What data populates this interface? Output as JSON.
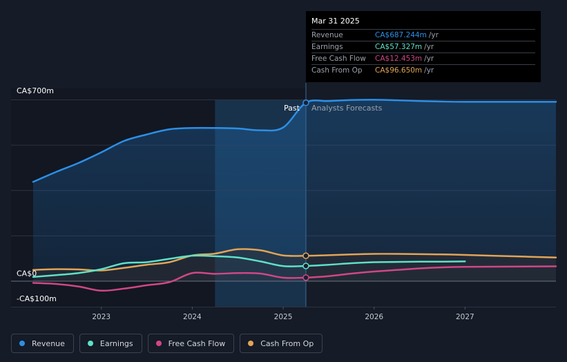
{
  "chart_data": {
    "type": "line",
    "title": "",
    "y_unit": "CA$",
    "ylim": [
      -100,
      700
    ],
    "xlim": [
      2022.25,
      2028.0
    ],
    "y_tick_labels": [
      {
        "value": 700,
        "label": "CA$700m"
      },
      {
        "value": 0,
        "label": "CA$0"
      },
      {
        "value": -100,
        "label": "-CA$100m"
      }
    ],
    "x_ticks": [
      {
        "value": 2023,
        "label": "2023"
      },
      {
        "value": 2024,
        "label": "2024"
      },
      {
        "value": 2025,
        "label": "2025"
      },
      {
        "value": 2026,
        "label": "2026"
      },
      {
        "value": 2027,
        "label": "2027"
      }
    ],
    "past_label": "Past",
    "forecast_label": "Analysts Forecasts",
    "divider_x": 2025.25,
    "highlight_start_x": 2024.25,
    "series": [
      {
        "name": "Revenue",
        "color": "#2d8fe6",
        "area": true,
        "points": [
          [
            2022.25,
            382
          ],
          [
            2022.5,
            420
          ],
          [
            2022.75,
            455
          ],
          [
            2023.0,
            496
          ],
          [
            2023.25,
            540
          ],
          [
            2023.5,
            565
          ],
          [
            2023.75,
            585
          ],
          [
            2024.0,
            590
          ],
          [
            2024.25,
            590
          ],
          [
            2024.5,
            588
          ],
          [
            2024.75,
            581
          ],
          [
            2025.0,
            592
          ],
          [
            2025.25,
            687.244
          ],
          [
            2025.5,
            694
          ],
          [
            2025.75,
            698
          ],
          [
            2026.0,
            699
          ],
          [
            2026.25,
            697
          ],
          [
            2026.5,
            694
          ],
          [
            2026.75,
            692
          ],
          [
            2027.0,
            691
          ],
          [
            2027.5,
            691
          ],
          [
            2028.0,
            691
          ]
        ]
      },
      {
        "name": "Earnings",
        "color": "#5ee1c8",
        "points": [
          [
            2022.25,
            15
          ],
          [
            2022.5,
            22
          ],
          [
            2022.75,
            30
          ],
          [
            2023.0,
            45
          ],
          [
            2023.25,
            68
          ],
          [
            2023.5,
            72
          ],
          [
            2023.75,
            85
          ],
          [
            2024.0,
            97
          ],
          [
            2024.25,
            95
          ],
          [
            2024.5,
            90
          ],
          [
            2024.75,
            75
          ],
          [
            2025.0,
            57
          ],
          [
            2025.25,
            57.327
          ],
          [
            2025.5,
            62
          ],
          [
            2025.75,
            68
          ],
          [
            2026.0,
            72
          ],
          [
            2026.25,
            73
          ],
          [
            2026.5,
            74
          ],
          [
            2026.75,
            74
          ],
          [
            2027.0,
            75
          ]
        ]
      },
      {
        "name": "Free Cash Flow",
        "color": "#d04786",
        "points": [
          [
            2022.25,
            -8
          ],
          [
            2022.5,
            -12
          ],
          [
            2022.75,
            -22
          ],
          [
            2023.0,
            -38
          ],
          [
            2023.25,
            -30
          ],
          [
            2023.5,
            -17
          ],
          [
            2023.75,
            -5
          ],
          [
            2024.0,
            30
          ],
          [
            2024.25,
            27
          ],
          [
            2024.5,
            30
          ],
          [
            2024.75,
            28
          ],
          [
            2025.0,
            12
          ],
          [
            2025.25,
            12.453
          ],
          [
            2025.5,
            18
          ],
          [
            2025.75,
            28
          ],
          [
            2026.0,
            36
          ],
          [
            2026.25,
            42
          ],
          [
            2026.5,
            48
          ],
          [
            2026.75,
            52
          ],
          [
            2027.0,
            54
          ],
          [
            2027.5,
            55
          ],
          [
            2028.0,
            56
          ]
        ]
      },
      {
        "name": "Cash From Op",
        "color": "#e2a457",
        "points": [
          [
            2022.25,
            42
          ],
          [
            2022.5,
            45
          ],
          [
            2022.75,
            44
          ],
          [
            2023.0,
            40
          ],
          [
            2023.25,
            50
          ],
          [
            2023.5,
            62
          ],
          [
            2023.75,
            72
          ],
          [
            2024.0,
            98
          ],
          [
            2024.25,
            105
          ],
          [
            2024.5,
            122
          ],
          [
            2024.75,
            118
          ],
          [
            2025.0,
            98
          ],
          [
            2025.25,
            96.65
          ],
          [
            2025.5,
            99
          ],
          [
            2025.75,
            102
          ],
          [
            2026.0,
            104
          ],
          [
            2026.25,
            104
          ],
          [
            2026.5,
            103
          ],
          [
            2026.75,
            102
          ],
          [
            2027.0,
            100
          ],
          [
            2027.5,
            95
          ],
          [
            2028.0,
            90
          ]
        ]
      }
    ]
  },
  "tooltip": {
    "date": "Mar 31 2025",
    "rows": [
      {
        "label": "Revenue",
        "value": "CA$687.244m",
        "unit": "/yr",
        "color": "#2d8fe6"
      },
      {
        "label": "Earnings",
        "value": "CA$57.327m",
        "unit": "/yr",
        "color": "#5ee1c8"
      },
      {
        "label": "Free Cash Flow",
        "value": "CA$12.453m",
        "unit": "/yr",
        "color": "#d04786"
      },
      {
        "label": "Cash From Op",
        "value": "CA$96.650m",
        "unit": "/yr",
        "color": "#e2a457"
      }
    ]
  },
  "legend": [
    {
      "label": "Revenue",
      "color": "#2d8fe6"
    },
    {
      "label": "Earnings",
      "color": "#5ee1c8"
    },
    {
      "label": "Free Cash Flow",
      "color": "#d04786"
    },
    {
      "label": "Cash From Op",
      "color": "#e2a457"
    }
  ]
}
